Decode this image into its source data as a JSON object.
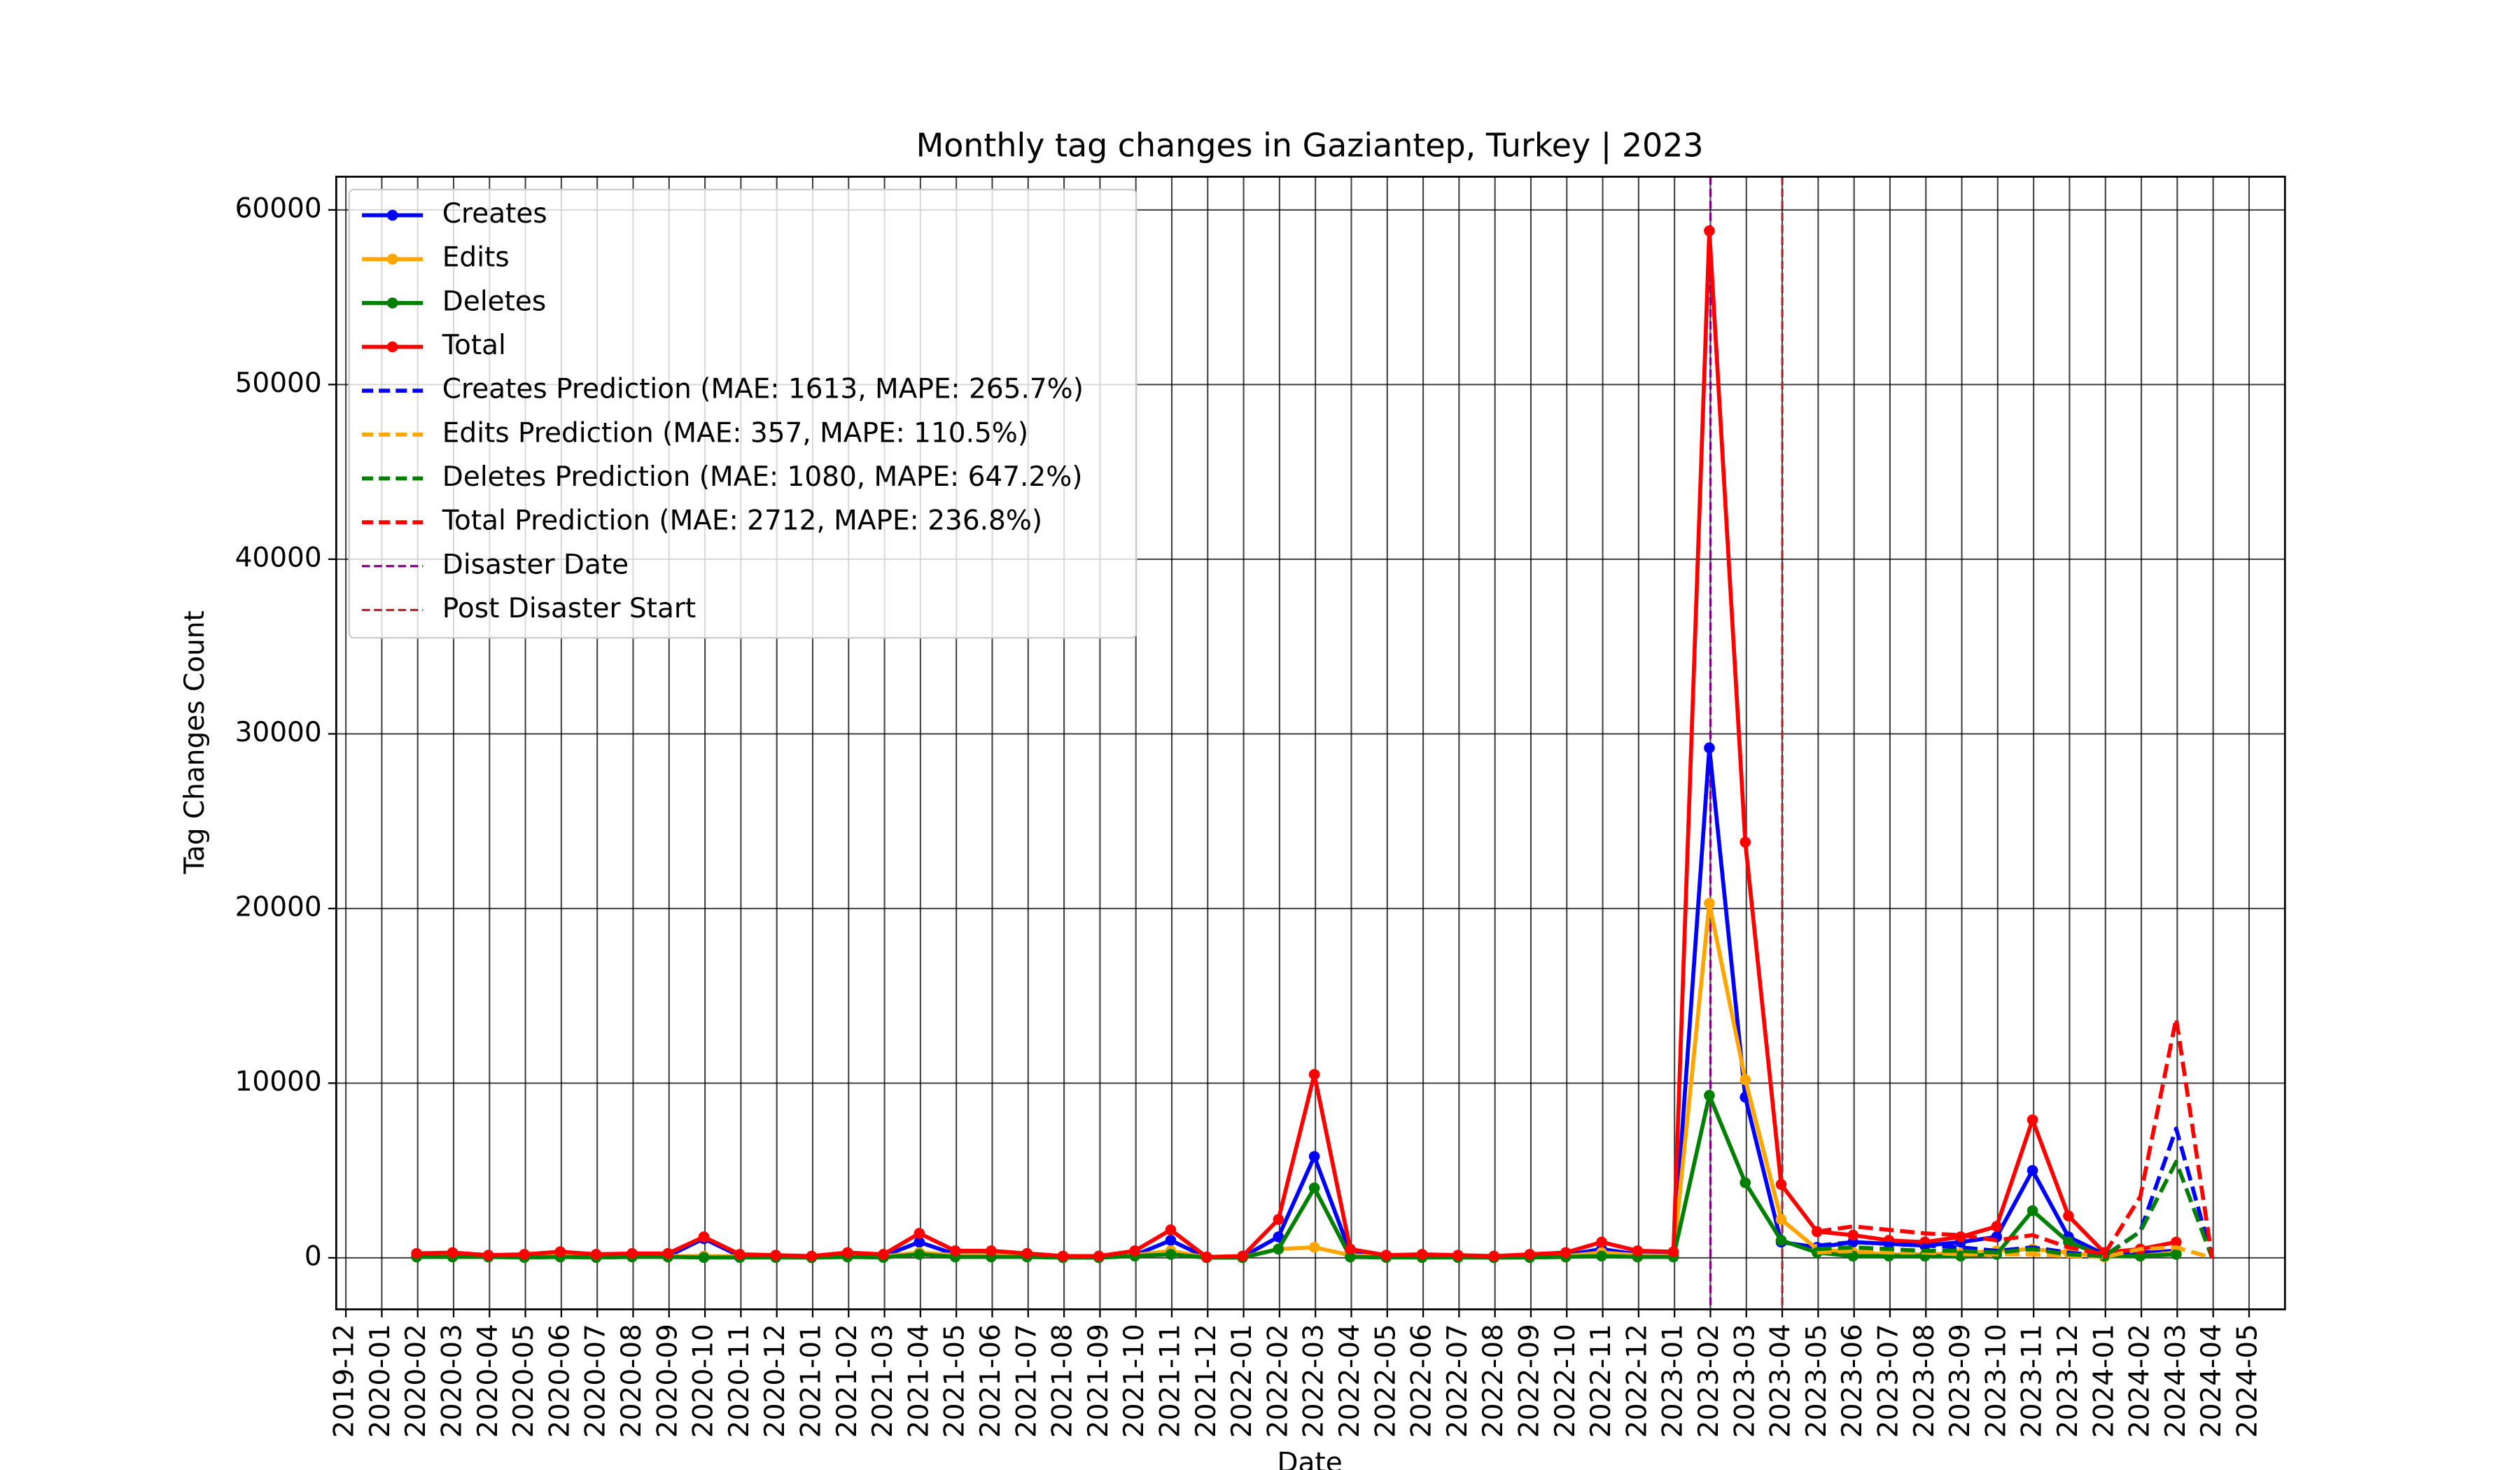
{
  "chart_data": {
    "type": "line",
    "title": "Monthly tag changes in Gaziantep, Turkey | 2023",
    "xlabel": "Date",
    "ylabel": "Tag Changes Count",
    "x": [
      "2020-01",
      "2020-02",
      "2020-03",
      "2020-04",
      "2020-05",
      "2020-06",
      "2020-07",
      "2020-08",
      "2020-09",
      "2020-10",
      "2020-11",
      "2020-12",
      "2021-01",
      "2021-02",
      "2021-03",
      "2021-04",
      "2021-05",
      "2021-06",
      "2021-07",
      "2021-08",
      "2021-09",
      "2021-10",
      "2021-11",
      "2021-12",
      "2022-01",
      "2022-02",
      "2022-03",
      "2022-04",
      "2022-05",
      "2022-06",
      "2022-07",
      "2022-08",
      "2022-09",
      "2022-10",
      "2022-11",
      "2022-12",
      "2023-01",
      "2023-02",
      "2023-03",
      "2023-04",
      "2023-05",
      "2023-06",
      "2023-07",
      "2023-08",
      "2023-09",
      "2023-10",
      "2023-11",
      "2023-12",
      "2024-01",
      "2024-02",
      "2024-03"
    ],
    "series": [
      {
        "name": "Creates",
        "color": "#0000ff",
        "style": "solid",
        "marker": true,
        "values": [
          100,
          150,
          50,
          100,
          150,
          100,
          100,
          100,
          1100,
          100,
          50,
          50,
          150,
          100,
          900,
          200,
          200,
          100,
          50,
          50,
          150,
          1000,
          20,
          50,
          1200,
          5800,
          300,
          80,
          100,
          80,
          50,
          100,
          150,
          500,
          200,
          200,
          29200,
          9200,
          900,
          600,
          900,
          800,
          700,
          900,
          1200,
          5000,
          1200,
          200,
          300,
          400,
          null
        ]
      },
      {
        "name": "Edits",
        "color": "#ffa500",
        "style": "solid",
        "marker": true,
        "values": [
          100,
          100,
          50,
          80,
          150,
          80,
          100,
          100,
          100,
          80,
          80,
          40,
          100,
          80,
          300,
          150,
          150,
          100,
          40,
          40,
          150,
          400,
          20,
          40,
          500,
          600,
          150,
          50,
          80,
          50,
          40,
          80,
          100,
          300,
          150,
          100,
          20300,
          10200,
          2200,
          500,
          300,
          200,
          200,
          250,
          400,
          500,
          300,
          50,
          100,
          300,
          null
        ]
      },
      {
        "name": "Deletes",
        "color": "#008000",
        "style": "solid",
        "marker": true,
        "values": [
          50,
          50,
          50,
          20,
          50,
          20,
          50,
          50,
          20,
          20,
          20,
          10,
          50,
          20,
          200,
          50,
          50,
          50,
          10,
          10,
          100,
          200,
          10,
          10,
          500,
          4000,
          50,
          20,
          20,
          20,
          10,
          20,
          50,
          100,
          50,
          50,
          9300,
          4300,
          1000,
          300,
          100,
          100,
          100,
          100,
          200,
          2700,
          900,
          100,
          100,
          200,
          null
        ]
      },
      {
        "name": "Total",
        "color": "#ff0000",
        "style": "solid",
        "marker": true,
        "values": [
          250,
          300,
          150,
          200,
          350,
          200,
          250,
          250,
          1200,
          200,
          150,
          100,
          300,
          200,
          1400,
          400,
          400,
          250,
          100,
          100,
          400,
          1600,
          50,
          100,
          2200,
          10500,
          500,
          150,
          200,
          150,
          100,
          200,
          300,
          900,
          400,
          350,
          58800,
          23800,
          4200,
          1500,
          1300,
          1000,
          900,
          1200,
          1800,
          7900,
          2400,
          300,
          500,
          900,
          null
        ]
      },
      {
        "name": "Creates Prediction (MAE: 1613, MAPE: 265.7%)",
        "color": "#0000ff",
        "style": "dashed",
        "marker": false,
        "values": [
          null,
          null,
          null,
          null,
          null,
          null,
          null,
          null,
          null,
          null,
          null,
          null,
          null,
          null,
          null,
          null,
          null,
          null,
          null,
          null,
          null,
          null,
          null,
          null,
          null,
          null,
          null,
          null,
          null,
          null,
          null,
          null,
          null,
          null,
          null,
          null,
          null,
          null,
          null,
          700,
          900,
          800,
          700,
          600,
          400,
          600,
          300,
          100,
          1500,
          7400,
          0
        ]
      },
      {
        "name": "Edits Prediction (MAE: 357, MAPE: 110.5%)",
        "color": "#ffa500",
        "style": "dashed",
        "marker": false,
        "values": [
          null,
          null,
          null,
          null,
          null,
          null,
          null,
          null,
          null,
          null,
          null,
          null,
          null,
          null,
          null,
          null,
          null,
          null,
          null,
          null,
          null,
          null,
          null,
          null,
          null,
          null,
          null,
          null,
          null,
          null,
          null,
          null,
          null,
          null,
          null,
          null,
          null,
          null,
          null,
          300,
          400,
          300,
          300,
          200,
          200,
          200,
          100,
          50,
          500,
          600,
          0
        ]
      },
      {
        "name": "Deletes Prediction (MAE: 1080, MAPE: 647.2%)",
        "color": "#008000",
        "style": "dashed",
        "marker": false,
        "values": [
          null,
          null,
          null,
          null,
          null,
          null,
          null,
          null,
          null,
          null,
          null,
          null,
          null,
          null,
          null,
          null,
          null,
          null,
          null,
          null,
          null,
          null,
          null,
          null,
          null,
          null,
          null,
          null,
          null,
          null,
          null,
          null,
          null,
          null,
          null,
          null,
          null,
          null,
          null,
          500,
          600,
          500,
          400,
          400,
          300,
          500,
          200,
          100,
          1500,
          5500,
          0
        ]
      },
      {
        "name": "Total Prediction (MAE: 2712, MAPE: 236.8%)",
        "color": "#ff0000",
        "style": "dashed",
        "marker": false,
        "values": [
          null,
          null,
          null,
          null,
          null,
          null,
          null,
          null,
          null,
          null,
          null,
          null,
          null,
          null,
          null,
          null,
          null,
          null,
          null,
          null,
          null,
          null,
          null,
          null,
          null,
          null,
          null,
          null,
          null,
          null,
          null,
          null,
          null,
          null,
          null,
          null,
          null,
          null,
          null,
          1500,
          1800,
          1600,
          1400,
          1300,
          1000,
          1300,
          600,
          200,
          3500,
          13700,
          0
        ]
      }
    ],
    "vlines": [
      {
        "name": "Disaster Date",
        "color": "#800080",
        "x": "2023-02"
      },
      {
        "name": "Post Disaster Start",
        "color": "#a52a2a",
        "x": "2023-04"
      }
    ],
    "xlim": [
      "2019-12",
      "2024-06"
    ],
    "xticks": [
      "2019-12",
      "2020-01",
      "2020-02",
      "2020-03",
      "2020-04",
      "2020-05",
      "2020-06",
      "2020-07",
      "2020-08",
      "2020-09",
      "2020-10",
      "2020-11",
      "2020-12",
      "2021-01",
      "2021-02",
      "2021-03",
      "2021-04",
      "2021-05",
      "2021-06",
      "2021-07",
      "2021-08",
      "2021-09",
      "2021-10",
      "2021-11",
      "2021-12",
      "2022-01",
      "2022-02",
      "2022-03",
      "2022-04",
      "2022-05",
      "2022-06",
      "2022-07",
      "2022-08",
      "2022-09",
      "2022-10",
      "2022-11",
      "2022-12",
      "2023-01",
      "2023-02",
      "2023-03",
      "2023-04",
      "2023-05",
      "2023-06",
      "2023-07",
      "2023-08",
      "2023-09",
      "2023-10",
      "2023-11",
      "2023-12",
      "2024-01",
      "2024-02",
      "2024-03",
      "2024-04",
      "2024-05"
    ],
    "ylim": [
      -2950,
      61900
    ],
    "yticks": [
      0,
      10000,
      20000,
      30000,
      40000,
      50000,
      60000
    ],
    "grid": true,
    "legend": "upper left"
  }
}
